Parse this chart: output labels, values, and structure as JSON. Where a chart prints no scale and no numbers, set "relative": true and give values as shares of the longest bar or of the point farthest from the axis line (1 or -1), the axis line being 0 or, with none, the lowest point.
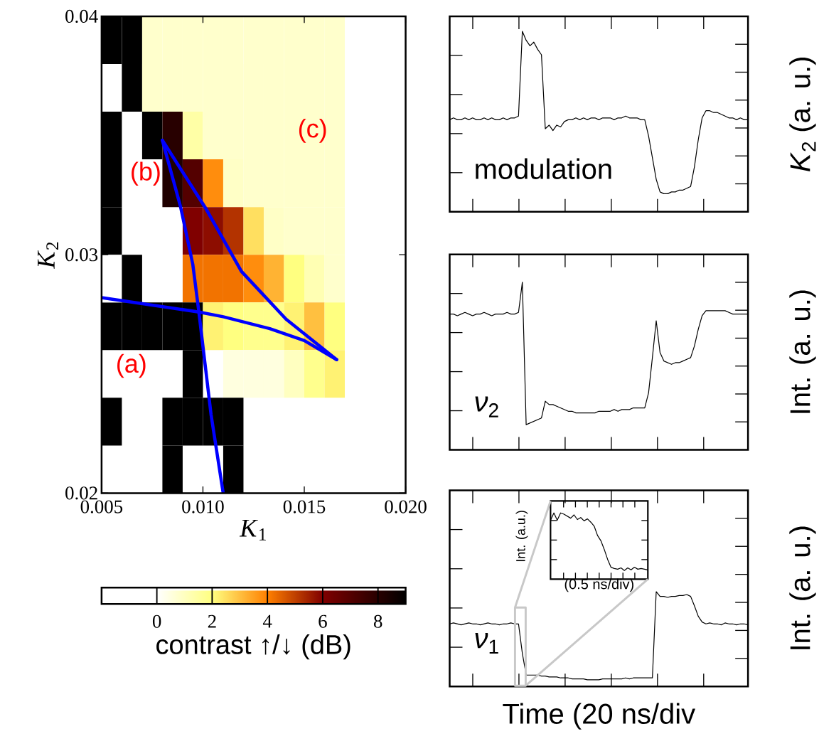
{
  "chart_data": [
    {
      "type": "heatmap",
      "xlabel": "*K*$_{1}$",
      "ylabel": "*K*$_{2}$",
      "clabel": "contrast ↑/↓ (dB)",
      "cells": [
        [
          9,
          9,
          0.8,
          0.8,
          0.8,
          0.8,
          0.8,
          0.8,
          0.8,
          0.8,
          0.8,
          0.8,
          null,
          null,
          null
        ],
        [
          null,
          9,
          0.8,
          0.8,
          0.8,
          0.8,
          0.8,
          0.8,
          0.8,
          0.8,
          0.8,
          0.8,
          null,
          null,
          null
        ],
        [
          9,
          null,
          9,
          8,
          1.4,
          0.8,
          0.8,
          0.8,
          0.8,
          0.8,
          0.8,
          0.8,
          null,
          null,
          null
        ],
        [
          9,
          null,
          null,
          8.2,
          7,
          3.8,
          0.9,
          0.8,
          0.8,
          0.8,
          0.8,
          0.8,
          null,
          null,
          null
        ],
        [
          9,
          null,
          null,
          null,
          6,
          5.8,
          5.2,
          2.5,
          0.9,
          0.8,
          0.8,
          0.8,
          null,
          null,
          null
        ],
        [
          null,
          9,
          null,
          null,
          4.2,
          4.2,
          4.2,
          3.8,
          3.2,
          2,
          1.2,
          0.8,
          null,
          null,
          null
        ],
        [
          9,
          9,
          9,
          9,
          9,
          2.2,
          2,
          1.8,
          1.8,
          2.2,
          3,
          2,
          null,
          null,
          null
        ],
        [
          null,
          null,
          null,
          null,
          9,
          null,
          0.5,
          0.5,
          0.5,
          1,
          1.8,
          2.2,
          null,
          null,
          null
        ],
        [
          9,
          null,
          null,
          9,
          9,
          9,
          9,
          null,
          null,
          null,
          null,
          null,
          null,
          null,
          null
        ],
        [
          null,
          null,
          null,
          9,
          null,
          null,
          9,
          null,
          null,
          null,
          null,
          null,
          null,
          null,
          null
        ]
      ],
      "xlim": [
        0.005,
        0.02
      ],
      "ylim": [
        0.02,
        0.04
      ],
      "xticks": [
        {
          "value": 0.005,
          "label": "0.005"
        },
        {
          "value": 0.01,
          "label": "0.010"
        },
        {
          "value": 0.015,
          "label": "0.015"
        },
        {
          "value": 0.02,
          "label": "0.020"
        }
      ],
      "yticks": [
        {
          "value": 0.02,
          "label": "0.02"
        },
        {
          "value": 0.03,
          "label": "0.03"
        },
        {
          "value": 0.04,
          "label": "0.04"
        }
      ],
      "clim": [
        -2,
        9
      ],
      "cticks": [
        {
          "value": 0,
          "label": "0"
        },
        {
          "value": 2,
          "label": "2"
        },
        {
          "value": 4,
          "label": "4"
        },
        {
          "value": 6,
          "label": "6"
        },
        {
          "value": 8,
          "label": "8"
        }
      ],
      "series": [
        {
          "type": "line",
          "color": "#0000ff",
          "x": [
            0.005,
            0.0074,
            0.0098,
            0.011,
            0.0133,
            0.015,
            0.0166
          ],
          "values": [
            0.0282,
            0.0279,
            0.0276,
            0.0274,
            0.0269,
            0.0264,
            0.0256
          ]
        },
        {
          "type": "line",
          "color": "#0000ff",
          "x": [
            0.008,
            0.0089,
            0.0095,
            0.0098,
            0.0104,
            0.011
          ],
          "values": [
            0.0348,
            0.032,
            0.0296,
            0.0276,
            0.0233,
            0.02
          ]
        },
        {
          "type": "line",
          "color": "#0000ff",
          "x": [
            0.008,
            0.0101,
            0.0119,
            0.0141,
            0.0166
          ],
          "values": [
            0.0348,
            0.032,
            0.0293,
            0.0273,
            0.0256
          ]
        }
      ],
      "annotations": [
        "(a)",
        "(b)",
        "(c)"
      ]
    },
    {
      "type": "line",
      "relative": true,
      "ylabel": "*K*$_{2}$ (a. u.)",
      "annotations": [
        "modulation"
      ],
      "color": "#000000",
      "categories": [
        null,
        null,
        null,
        null,
        null,
        null,
        null,
        null,
        null,
        null,
        null,
        null,
        null,
        null,
        null,
        null,
        null,
        null,
        null,
        null,
        null,
        null,
        null,
        null,
        null,
        null,
        null,
        null,
        null,
        null,
        null,
        null,
        null,
        null,
        null,
        null,
        null,
        null,
        null,
        null,
        null,
        null,
        null,
        null,
        null,
        null,
        null,
        null,
        null,
        null,
        null,
        null,
        null,
        null,
        null,
        null,
        null,
        null,
        null,
        null,
        null,
        null,
        null,
        null,
        null,
        null,
        null,
        null,
        null,
        null,
        null,
        null,
        null,
        null,
        null,
        null,
        null,
        null,
        null
      ],
      "values": [
        0.51,
        0.52,
        0.51,
        0.51,
        0.52,
        0.51,
        0.52,
        0.51,
        0.51,
        0.52,
        0.51,
        0.52,
        0.51,
        0.51,
        0.52,
        0.51,
        0.52,
        0.52,
        0.53,
        1.0,
        0.95,
        0.92,
        0.94,
        0.9,
        0.87,
        0.46,
        0.48,
        0.45,
        0.48,
        0.47,
        0.5,
        0.51,
        0.51,
        0.52,
        0.51,
        0.52,
        0.51,
        0.52,
        0.52,
        0.51,
        0.52,
        0.52,
        0.52,
        0.51,
        0.52,
        0.52,
        0.53,
        0.52,
        0.52,
        0.52,
        0.51,
        0.51,
        0.42,
        0.3,
        0.18,
        0.11,
        0.1,
        0.1,
        0.11,
        0.11,
        0.12,
        0.12,
        0.13,
        0.14,
        0.25,
        0.4,
        0.52,
        0.56,
        0.56,
        0.55,
        0.55,
        0.54,
        0.53,
        0.52,
        0.52,
        0.51,
        0.52,
        0.51,
        0.51
      ]
    },
    {
      "type": "line",
      "relative": true,
      "ylabel": "Int. (a. u.)",
      "annotations": [
        "*ν*$_{2}$"
      ],
      "color": "#000000",
      "categories": [
        null,
        null,
        null,
        null,
        null,
        null,
        null,
        null,
        null,
        null,
        null,
        null,
        null,
        null,
        null,
        null,
        null,
        null,
        null,
        null,
        null,
        null,
        null,
        null,
        null,
        null,
        null,
        null,
        null,
        null,
        null,
        null,
        null,
        null,
        null,
        null,
        null,
        null,
        null,
        null,
        null,
        null,
        null,
        null,
        null,
        null,
        null,
        null,
        null,
        null,
        null,
        null,
        null,
        null,
        null,
        null,
        null,
        null,
        null,
        null,
        null,
        null,
        null,
        null,
        null,
        null,
        null,
        null,
        null,
        null,
        null,
        null,
        null,
        null,
        null,
        null,
        null,
        null,
        null
      ],
      "values": [
        0.81,
        0.81,
        0.8,
        0.81,
        0.82,
        0.81,
        0.8,
        0.81,
        0.81,
        0.82,
        0.81,
        0.8,
        0.81,
        0.81,
        0.81,
        0.82,
        0.81,
        0.81,
        0.82,
        1.0,
        0.15,
        0.16,
        0.17,
        0.18,
        0.19,
        0.29,
        0.27,
        0.27,
        0.26,
        0.25,
        0.24,
        0.23,
        0.23,
        0.22,
        0.22,
        0.22,
        0.22,
        0.22,
        0.22,
        0.23,
        0.23,
        0.23,
        0.23,
        0.24,
        0.23,
        0.24,
        0.24,
        0.24,
        0.25,
        0.25,
        0.25,
        0.25,
        0.34,
        0.55,
        0.77,
        0.58,
        0.53,
        0.52,
        0.51,
        0.52,
        0.52,
        0.53,
        0.54,
        0.55,
        0.62,
        0.72,
        0.8,
        0.83,
        0.83,
        0.83,
        0.83,
        0.83,
        0.83,
        0.82,
        0.81,
        0.81,
        0.81,
        0.81,
        0.81
      ]
    },
    {
      "type": "line",
      "relative": true,
      "xlabel": "Time (20 ns/div",
      "ylabel": "Int. (a. u.)",
      "annotations": [
        "*ν*$_{1}$"
      ],
      "color": "#000000",
      "categories": [
        null,
        null,
        null,
        null,
        null,
        null,
        null,
        null,
        null,
        null,
        null,
        null,
        null,
        null,
        null,
        null,
        null,
        null,
        null,
        null,
        null,
        null,
        null,
        null,
        null,
        null,
        null,
        null,
        null,
        null,
        null,
        null,
        null,
        null,
        null,
        null,
        null,
        null,
        null,
        null,
        null,
        null,
        null,
        null,
        null,
        null,
        null,
        null,
        null,
        null,
        null,
        null,
        null,
        null,
        null,
        null,
        null,
        null,
        null,
        null,
        null,
        null,
        null,
        null,
        null,
        null,
        null,
        null,
        null,
        null,
        null,
        null,
        null,
        null,
        null,
        null,
        null,
        null,
        null
      ],
      "values": [
        0.66,
        0.67,
        0.66,
        0.65,
        0.66,
        0.67,
        0.66,
        0.66,
        0.65,
        0.66,
        0.67,
        0.66,
        0.66,
        0.65,
        0.66,
        0.66,
        0.67,
        0.66,
        0.66,
        0.35,
        0.12,
        0.12,
        0.12,
        0.12,
        0.11,
        0.11,
        0.1,
        0.1,
        0.1,
        0.09,
        0.09,
        0.09,
        0.08,
        0.08,
        0.08,
        0.08,
        0.07,
        0.07,
        0.07,
        0.07,
        0.08,
        0.08,
        0.08,
        0.08,
        0.08,
        0.08,
        0.09,
        0.08,
        0.09,
        0.09,
        0.09,
        0.09,
        0.09,
        0.09,
        1.0,
        0.95,
        0.95,
        0.94,
        0.95,
        0.95,
        0.96,
        0.96,
        0.97,
        0.95,
        0.85,
        0.74,
        0.68,
        0.66,
        0.67,
        0.66,
        0.66,
        0.65,
        0.67,
        0.66,
        0.66,
        0.65,
        0.66,
        0.66,
        0.65
      ]
    },
    {
      "type": "line",
      "relative": true,
      "xlabel": "(0.5 ns/div)",
      "ylabel": "Int. (a.u.)",
      "color": "#000000",
      "categories": [
        null,
        null,
        null,
        null,
        null,
        null,
        null,
        null,
        null,
        null,
        null,
        null,
        null,
        null,
        null,
        null,
        null,
        null,
        null,
        null,
        null,
        null,
        null,
        null,
        null,
        null,
        null,
        null,
        null,
        null
      ],
      "values": [
        0.89,
        1.0,
        0.89,
        1.0,
        0.98,
        0.95,
        0.92,
        0.97,
        0.9,
        0.93,
        0.88,
        0.91,
        0.86,
        0.8,
        0.66,
        0.58,
        0.45,
        0.3,
        0.18,
        0.16,
        0.15,
        0.17,
        0.13,
        0.17,
        0.14,
        0.18,
        0.15,
        0.16,
        0.15,
        0.14
      ]
    }
  ]
}
